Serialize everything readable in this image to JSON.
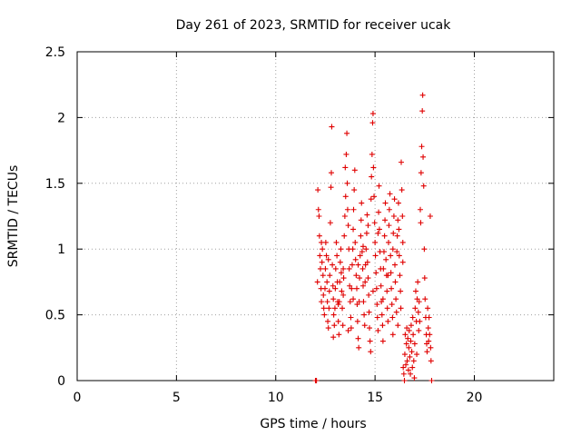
{
  "chart_data": {
    "type": "scatter",
    "title": "Day 261 of 2023, SRMTID for receiver ucak",
    "xlabel": "GPS time / hours",
    "ylabel": "SRMTID / TECUs",
    "xlim": [
      0,
      24
    ],
    "ylim": [
      0,
      2.5
    ],
    "xticks": [
      0,
      5,
      10,
      15,
      20
    ],
    "yticks": [
      0,
      0.5,
      1,
      1.5,
      2,
      2.5
    ],
    "xtick_labels": [
      "0",
      "5",
      "10",
      "15",
      "20"
    ],
    "ytick_labels": [
      "0",
      "0.5",
      "1",
      "1.5",
      "2",
      "2.5"
    ],
    "grid": true,
    "marker": "+",
    "color": "#e00000",
    "series": [
      {
        "name": "SRMTID",
        "points": [
          [
            12.0,
            0.0
          ],
          [
            12.05,
            0.0
          ],
          [
            12.1,
            0.75
          ],
          [
            12.12,
            1.45
          ],
          [
            12.15,
            1.3
          ],
          [
            12.18,
            1.25
          ],
          [
            12.2,
            1.1
          ],
          [
            12.22,
            0.95
          ],
          [
            12.25,
            0.85
          ],
          [
            12.28,
            0.7
          ],
          [
            12.3,
            0.6
          ],
          [
            12.33,
            0.9
          ],
          [
            12.35,
            1.0
          ],
          [
            12.38,
            0.8
          ],
          [
            12.4,
            0.65
          ],
          [
            12.42,
            0.55
          ],
          [
            12.45,
            0.5
          ],
          [
            12.48,
            0.7
          ],
          [
            12.5,
            0.85
          ],
          [
            12.52,
            1.05
          ],
          [
            12.55,
            0.95
          ],
          [
            12.58,
            0.75
          ],
          [
            12.6,
            0.6
          ],
          [
            12.62,
            0.45
          ],
          [
            12.65,
            0.4
          ],
          [
            12.68,
            0.55
          ],
          [
            12.7,
            0.68
          ],
          [
            12.72,
            0.8
          ],
          [
            12.75,
            1.2
          ],
          [
            12.78,
            1.47
          ],
          [
            12.8,
            1.58
          ],
          [
            12.82,
            1.93
          ],
          [
            12.85,
            0.88
          ],
          [
            12.88,
            0.72
          ],
          [
            12.9,
            0.62
          ],
          [
            12.92,
            0.5
          ],
          [
            12.95,
            0.42
          ],
          [
            12.98,
            0.55
          ],
          [
            13.0,
            0.7
          ],
          [
            13.02,
            0.85
          ],
          [
            13.05,
            1.05
          ],
          [
            13.08,
            0.95
          ],
          [
            13.1,
            0.75
          ],
          [
            13.12,
            0.6
          ],
          [
            13.15,
            0.45
          ],
          [
            13.18,
            0.35
          ],
          [
            13.2,
            0.6
          ],
          [
            13.22,
            0.75
          ],
          [
            13.25,
            0.9
          ],
          [
            13.28,
            1.0
          ],
          [
            13.3,
            0.82
          ],
          [
            13.32,
            0.68
          ],
          [
            13.35,
            0.55
          ],
          [
            13.38,
            0.42
          ],
          [
            13.4,
            0.65
          ],
          [
            13.42,
            0.78
          ],
          [
            13.45,
            1.1
          ],
          [
            13.48,
            1.25
          ],
          [
            13.5,
            1.62
          ],
          [
            13.52,
            1.4
          ],
          [
            13.55,
            1.72
          ],
          [
            13.58,
            1.88
          ],
          [
            13.6,
            1.5
          ],
          [
            13.62,
            1.3
          ],
          [
            13.65,
            1.18
          ],
          [
            13.68,
            1.0
          ],
          [
            13.7,
            0.85
          ],
          [
            13.72,
            0.72
          ],
          [
            13.75,
            0.6
          ],
          [
            13.78,
            0.48
          ],
          [
            13.8,
            0.4
          ],
          [
            13.82,
            0.7
          ],
          [
            13.85,
            0.88
          ],
          [
            13.88,
            1.0
          ],
          [
            13.9,
            1.15
          ],
          [
            13.92,
            1.3
          ],
          [
            13.95,
            1.45
          ],
          [
            13.98,
            1.6
          ],
          [
            14.0,
            1.05
          ],
          [
            14.02,
            0.92
          ],
          [
            14.05,
            0.8
          ],
          [
            14.08,
            0.7
          ],
          [
            14.1,
            0.58
          ],
          [
            14.12,
            0.45
          ],
          [
            14.15,
            0.32
          ],
          [
            14.18,
            0.25
          ],
          [
            14.2,
            0.6
          ],
          [
            14.22,
            0.78
          ],
          [
            14.25,
            0.95
          ],
          [
            14.28,
            1.1
          ],
          [
            14.3,
            1.22
          ],
          [
            14.32,
            1.35
          ],
          [
            14.35,
            0.98
          ],
          [
            14.38,
            0.85
          ],
          [
            14.4,
            0.72
          ],
          [
            14.42,
            0.6
          ],
          [
            14.45,
            0.5
          ],
          [
            14.48,
            0.42
          ],
          [
            14.5,
            0.75
          ],
          [
            14.52,
            0.88
          ],
          [
            14.55,
            1.0
          ],
          [
            14.58,
            1.12
          ],
          [
            14.6,
            1.26
          ],
          [
            14.62,
            0.9
          ],
          [
            14.65,
            0.78
          ],
          [
            14.68,
            0.65
          ],
          [
            14.7,
            0.52
          ],
          [
            14.72,
            0.4
          ],
          [
            14.75,
            0.3
          ],
          [
            14.78,
            0.22
          ],
          [
            14.8,
            1.38
          ],
          [
            14.82,
            1.55
          ],
          [
            14.85,
            1.72
          ],
          [
            14.88,
            1.96
          ],
          [
            14.9,
            2.03
          ],
          [
            14.92,
            1.62
          ],
          [
            14.95,
            1.4
          ],
          [
            14.98,
            1.2
          ],
          [
            15.0,
            1.05
          ],
          [
            15.02,
            0.95
          ],
          [
            15.05,
            0.82
          ],
          [
            15.08,
            0.7
          ],
          [
            15.1,
            0.58
          ],
          [
            15.12,
            0.48
          ],
          [
            15.15,
            1.12
          ],
          [
            15.18,
            1.28
          ],
          [
            15.2,
            1.48
          ],
          [
            15.22,
            1.15
          ],
          [
            15.25,
            0.98
          ],
          [
            15.28,
            0.85
          ],
          [
            15.3,
            0.72
          ],
          [
            15.32,
            0.6
          ],
          [
            15.35,
            0.5
          ],
          [
            15.38,
            0.42
          ],
          [
            15.4,
            0.3
          ],
          [
            15.42,
            0.85
          ],
          [
            15.45,
            0.98
          ],
          [
            15.48,
            1.1
          ],
          [
            15.5,
            1.22
          ],
          [
            15.52,
            1.35
          ],
          [
            15.55,
            0.92
          ],
          [
            15.58,
            0.8
          ],
          [
            15.6,
            0.68
          ],
          [
            15.62,
            0.55
          ],
          [
            15.65,
            0.45
          ],
          [
            15.68,
            1.05
          ],
          [
            15.7,
            1.18
          ],
          [
            15.72,
            1.3
          ],
          [
            15.75,
            1.42
          ],
          [
            15.78,
            0.95
          ],
          [
            15.8,
            0.82
          ],
          [
            15.82,
            0.7
          ],
          [
            15.85,
            0.58
          ],
          [
            15.88,
            0.48
          ],
          [
            15.9,
            1.0
          ],
          [
            15.92,
            1.12
          ],
          [
            15.95,
            1.25
          ],
          [
            15.98,
            1.38
          ],
          [
            16.0,
            0.88
          ],
          [
            16.02,
            0.75
          ],
          [
            16.05,
            0.62
          ],
          [
            16.08,
            0.52
          ],
          [
            16.1,
            0.98
          ],
          [
            16.12,
            1.1
          ],
          [
            16.15,
            1.22
          ],
          [
            16.18,
            1.35
          ],
          [
            16.2,
            1.15
          ],
          [
            16.22,
            0.95
          ],
          [
            16.25,
            0.8
          ],
          [
            16.28,
            0.68
          ],
          [
            16.3,
            0.55
          ],
          [
            16.32,
            1.66
          ],
          [
            16.35,
            1.45
          ],
          [
            16.38,
            1.25
          ],
          [
            16.4,
            0.9
          ],
          [
            16.42,
            0.1
          ],
          [
            16.45,
            0.05
          ],
          [
            16.48,
            0.0
          ],
          [
            16.5,
            0.2
          ],
          [
            16.52,
            0.35
          ],
          [
            16.55,
            0.12
          ],
          [
            16.58,
            0.28
          ],
          [
            16.6,
            0.4
          ],
          [
            16.62,
            0.15
          ],
          [
            16.65,
            0.32
          ],
          [
            16.68,
            0.08
          ],
          [
            16.7,
            0.25
          ],
          [
            16.72,
            0.38
          ],
          [
            16.75,
            0.18
          ],
          [
            16.78,
            0.05
          ],
          [
            16.8,
            0.3
          ],
          [
            16.82,
            0.42
          ],
          [
            16.85,
            0.22
          ],
          [
            16.88,
            0.1
          ],
          [
            16.9,
            0.48
          ],
          [
            16.92,
            0.35
          ],
          [
            16.95,
            0.15
          ],
          [
            16.98,
            0.02
          ],
          [
            17.0,
            0.28
          ],
          [
            17.02,
            0.55
          ],
          [
            17.05,
            0.68
          ],
          [
            17.08,
            0.45
          ],
          [
            17.1,
            0.2
          ],
          [
            17.12,
            0.62
          ],
          [
            17.15,
            0.75
          ],
          [
            17.18,
            0.52
          ],
          [
            17.2,
            0.38
          ],
          [
            17.22,
            0.6
          ],
          [
            17.25,
            0.45
          ],
          [
            17.28,
            1.3
          ],
          [
            17.3,
            1.2
          ],
          [
            17.32,
            1.58
          ],
          [
            17.35,
            1.78
          ],
          [
            17.38,
            2.05
          ],
          [
            17.4,
            2.17
          ],
          [
            17.42,
            1.7
          ],
          [
            17.45,
            1.48
          ],
          [
            17.48,
            1.0
          ],
          [
            17.5,
            0.78
          ],
          [
            17.52,
            0.62
          ],
          [
            17.55,
            0.48
          ],
          [
            17.58,
            0.35
          ],
          [
            17.6,
            0.28
          ],
          [
            17.62,
            0.22
          ],
          [
            17.65,
            0.55
          ],
          [
            17.68,
            0.4
          ],
          [
            17.7,
            0.3
          ],
          [
            17.72,
            0.48
          ],
          [
            17.75,
            0.35
          ],
          [
            17.78,
            1.25
          ],
          [
            17.8,
            0.25
          ],
          [
            17.82,
            0.15
          ],
          [
            17.85,
            0.0
          ],
          [
            12.3,
            1.05
          ],
          [
            12.65,
            0.92
          ],
          [
            12.9,
            0.33
          ],
          [
            13.15,
            0.58
          ],
          [
            13.4,
            0.85
          ],
          [
            13.65,
            0.38
          ],
          [
            13.9,
            0.62
          ],
          [
            14.15,
            0.88
          ],
          [
            14.4,
            1.02
          ],
          [
            14.65,
            1.18
          ],
          [
            14.9,
            0.68
          ],
          [
            15.15,
            0.38
          ],
          [
            15.4,
            0.62
          ],
          [
            15.65,
            0.8
          ],
          [
            15.9,
            0.35
          ],
          [
            16.15,
            0.42
          ],
          [
            16.4,
            1.05
          ]
        ]
      }
    ]
  }
}
